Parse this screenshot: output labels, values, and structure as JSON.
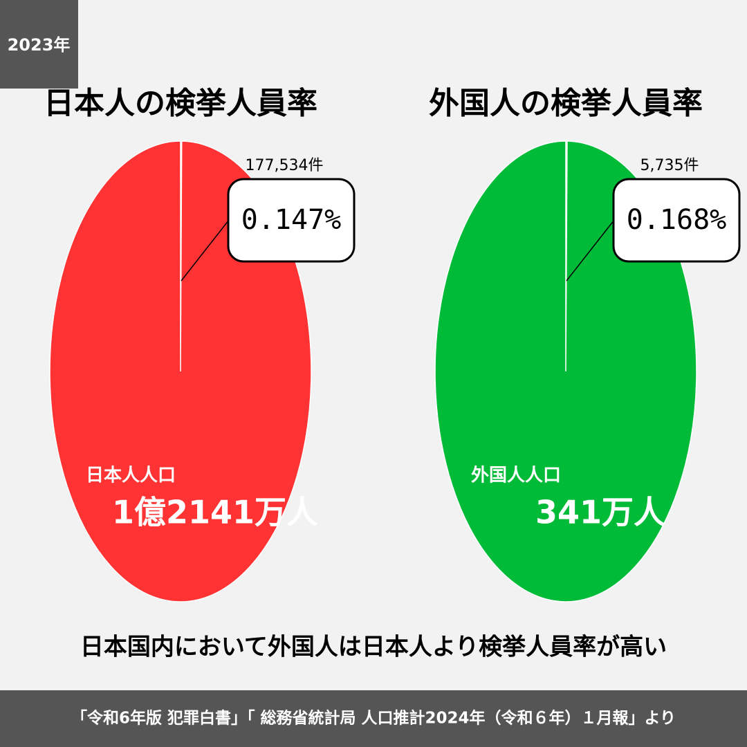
{
  "year": "2023年",
  "chart_data": [
    {
      "type": "pie",
      "title": "日本人の検挙人員率",
      "categories": [
        "177,534件",
        "日本人人口"
      ],
      "values": [
        0.147,
        99.853
      ],
      "value_labels": [
        "0.147%",
        null
      ],
      "colors": [
        "#ffffff",
        "#ff3333"
      ],
      "annotations": [
        "1億2141万人"
      ]
    },
    {
      "type": "pie",
      "title": "外国人の検挙人員率",
      "categories": [
        "5,735件",
        "外国人人口"
      ],
      "values": [
        0.168,
        99.832
      ],
      "value_labels": [
        "0.168%",
        null
      ],
      "colors": [
        "#ffffff",
        "#00bb38"
      ],
      "annotations": [
        "341万人"
      ]
    }
  ],
  "conclusion": "日本国内において外国人は日本人より検挙人員率が高い",
  "source": "「令和6年版 犯罪白書」「 総務省統計局 人口推計2024年（令和６年）１月報」より"
}
